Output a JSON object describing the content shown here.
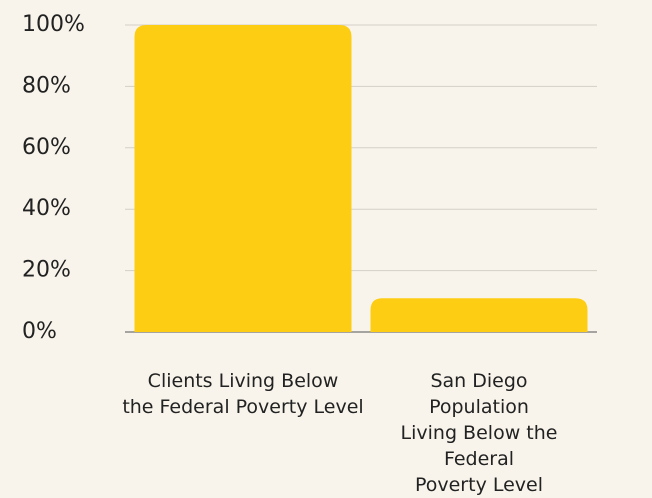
{
  "chart_data": {
    "type": "bar",
    "categories": [
      "Clients Living Below\nthe Federal Poverty Level",
      "San Diego Population\nLiving Below the Federal\nPoverty Level"
    ],
    "values": [
      100,
      11
    ],
    "color": "#fdcd13",
    "ylim": [
      0,
      100
    ],
    "yticks": [
      {
        "value": 0,
        "label": "0%"
      },
      {
        "value": 20,
        "label": "20%"
      },
      {
        "value": 40,
        "label": "40%"
      },
      {
        "value": 60,
        "label": "60%"
      },
      {
        "value": 80,
        "label": "80%"
      },
      {
        "value": 100,
        "label": "100%"
      }
    ],
    "grid": true
  }
}
